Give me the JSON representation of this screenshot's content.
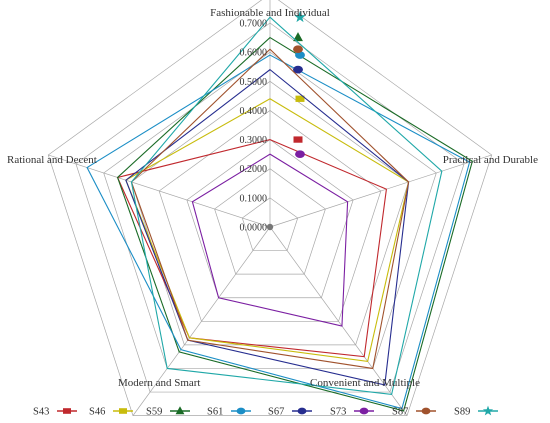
{
  "chart_data": {
    "type": "radar",
    "title": "",
    "axes": [
      "Fashionable and Individual",
      "Practical and Durable",
      "Convenient and Multiple",
      "Modern and Smart",
      "Rational and Decent"
    ],
    "rlim": [
      0,
      0.7
    ],
    "ticks": [
      "0.0000",
      "0.1000",
      "0.2000",
      "0.3000",
      "0.4000",
      "0.5000",
      "0.6000",
      "0.7000"
    ],
    "grid": true,
    "legend_position": "bottom",
    "series": [
      {
        "name": "S43",
        "color": "#c0282d",
        "marker": "square",
        "values": [
          0.3,
          0.42,
          0.55,
          0.47,
          0.55
        ]
      },
      {
        "name": "S46",
        "color": "#c8bc0c",
        "marker": "square",
        "values": [
          0.44,
          0.5,
          0.57,
          0.47,
          0.52
        ]
      },
      {
        "name": "S59",
        "color": "#1a6b26",
        "marker": "triangle",
        "values": [
          0.65,
          0.73,
          0.78,
          0.53,
          0.55
        ]
      },
      {
        "name": "S61",
        "color": "#1b8ec6",
        "marker": "circle",
        "values": [
          0.59,
          0.72,
          0.77,
          0.52,
          0.66
        ]
      },
      {
        "name": "S67",
        "color": "#262d8f",
        "marker": "circle",
        "values": [
          0.54,
          0.5,
          0.67,
          0.48,
          0.52
        ]
      },
      {
        "name": "S73",
        "color": "#7b1fa2",
        "marker": "circle",
        "values": [
          0.25,
          0.28,
          0.42,
          0.3,
          0.28
        ]
      },
      {
        "name": "S87",
        "color": "#a0522d",
        "marker": "circle",
        "values": [
          0.61,
          0.5,
          0.6,
          0.48,
          0.5
        ]
      },
      {
        "name": "S89",
        "color": "#20a8a8",
        "marker": "star",
        "values": [
          0.72,
          0.62,
          0.71,
          0.6,
          0.5
        ]
      }
    ]
  }
}
